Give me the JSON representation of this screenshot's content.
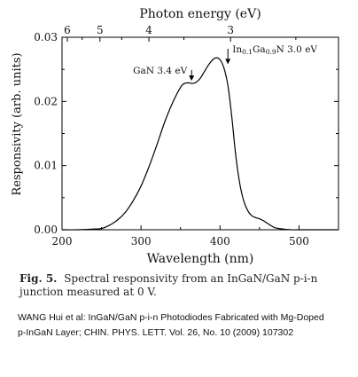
{
  "chart_data": {
    "type": "line",
    "xlabel": "Wavelength (nm)",
    "ylabel": "Responsivity (arb. units)",
    "top_axis_label": "Photon energy (eV)",
    "xlim": [
      200,
      550
    ],
    "ylim": [
      0.0,
      0.03
    ],
    "x_ticks": [
      200,
      300,
      400,
      500
    ],
    "x_tick_labels": [
      "200",
      "300",
      "400",
      "500"
    ],
    "y_ticks": [
      0.0,
      0.01,
      0.02,
      0.03
    ],
    "y_tick_labels": [
      "0.00",
      "0.01",
      "0.02",
      "0.03"
    ],
    "top_ticks_ev": [
      6,
      5,
      4,
      3
    ],
    "top_tick_labels": [
      "6",
      "5",
      "4",
      "3"
    ],
    "grid": false,
    "series": [
      {
        "x": [
          200,
          220,
          240,
          250,
          260,
          270,
          280,
          290,
          300,
          310,
          320,
          330,
          340,
          350,
          355,
          360,
          365,
          370,
          375,
          380,
          385,
          390,
          395,
          400,
          405,
          410,
          415,
          420,
          425,
          430,
          435,
          440,
          445,
          450,
          455,
          460,
          465,
          470,
          480,
          490,
          500,
          550
        ],
        "y": [
          0.0,
          0.0,
          0.0001,
          0.0002,
          0.0007,
          0.0015,
          0.0027,
          0.0045,
          0.0068,
          0.0098,
          0.0132,
          0.0168,
          0.0198,
          0.0222,
          0.0228,
          0.0229,
          0.0228,
          0.023,
          0.0236,
          0.0246,
          0.0256,
          0.0264,
          0.0268,
          0.0265,
          0.0252,
          0.0225,
          0.0175,
          0.0115,
          0.0072,
          0.0045,
          0.003,
          0.0022,
          0.0019,
          0.0017,
          0.0014,
          0.001,
          0.0006,
          0.0003,
          0.0001,
          0.0,
          0.0,
          0.0
        ]
      }
    ],
    "annotations": [
      {
        "text_main": "GaN 3.4",
        "text_unit": "eV",
        "arrow_x": 364,
        "arrow_y_from": 0.0249,
        "arrow_y_to": 0.0232
      },
      {
        "text_pre": "In",
        "sub1": "0.1",
        "text_mid": "Ga",
        "sub2": "0.9",
        "text_post": "N 3.0",
        "text_unit": "eV",
        "arrow_x": 410,
        "arrow_y_from": 0.0282,
        "arrow_y_to": 0.0258
      }
    ]
  },
  "caption": {
    "label": "Fig. 5.",
    "text": "Spectral responsivity from an InGaN/GaN p-i-n junction measured at 0 V."
  },
  "citation": {
    "line1": "WANG Hui et al: InGaN/GaN p-i-n Photodiodes Fabricated with Mg-Doped",
    "line2": "p-InGaN Layer; CHIN. PHYS. LETT. Vol. 26, No. 10 (2009) 107302"
  }
}
